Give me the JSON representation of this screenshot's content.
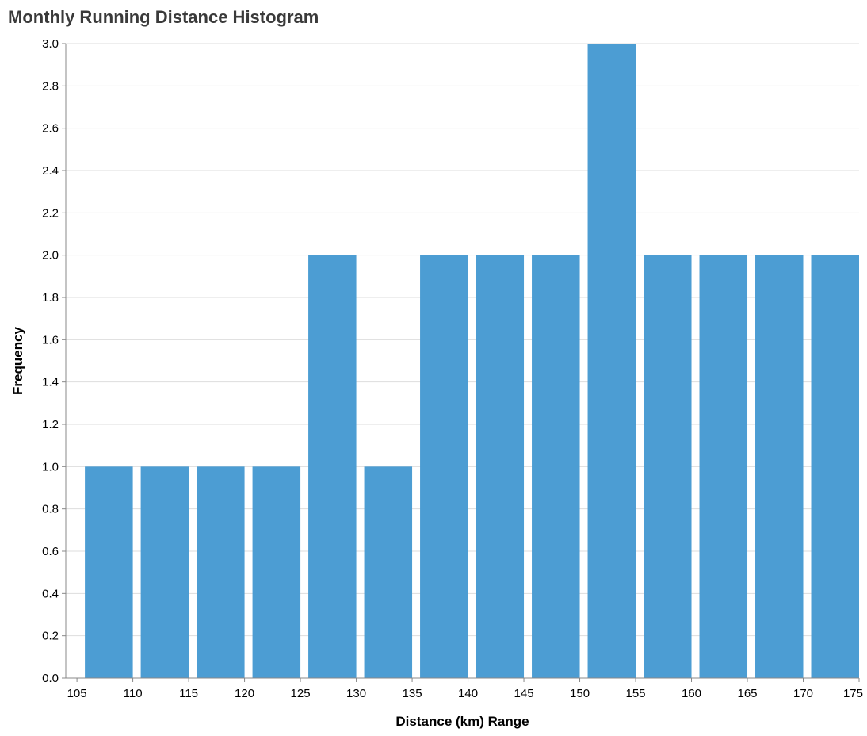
{
  "chart_data": {
    "type": "bar",
    "title": "Monthly Running Distance Histogram",
    "xlabel": "Distance (km) Range",
    "ylabel": "Frequency",
    "bins": [
      {
        "start": 105,
        "end": 110,
        "count": 1
      },
      {
        "start": 110,
        "end": 115,
        "count": 1
      },
      {
        "start": 115,
        "end": 120,
        "count": 1
      },
      {
        "start": 120,
        "end": 125,
        "count": 1
      },
      {
        "start": 125,
        "end": 130,
        "count": 2
      },
      {
        "start": 130,
        "end": 135,
        "count": 1
      },
      {
        "start": 135,
        "end": 140,
        "count": 2
      },
      {
        "start": 140,
        "end": 145,
        "count": 2
      },
      {
        "start": 145,
        "end": 150,
        "count": 2
      },
      {
        "start": 150,
        "end": 155,
        "count": 3
      },
      {
        "start": 155,
        "end": 160,
        "count": 2
      },
      {
        "start": 160,
        "end": 165,
        "count": 2
      },
      {
        "start": 165,
        "end": 170,
        "count": 2
      },
      {
        "start": 170,
        "end": 175,
        "count": 2
      }
    ],
    "xlim": [
      104,
      175
    ],
    "ylim": [
      0,
      3
    ],
    "x_ticks": [
      "105",
      "110",
      "115",
      "120",
      "125",
      "130",
      "135",
      "140",
      "145",
      "150",
      "155",
      "160",
      "165",
      "170",
      "175"
    ],
    "y_ticks": [
      "0.0",
      "0.2",
      "0.4",
      "0.6",
      "0.8",
      "1.0",
      "1.2",
      "1.4",
      "1.6",
      "1.8",
      "2.0",
      "2.2",
      "2.4",
      "2.6",
      "2.8",
      "3.0"
    ],
    "grid": true,
    "bar_color": "#4c9dd3"
  }
}
